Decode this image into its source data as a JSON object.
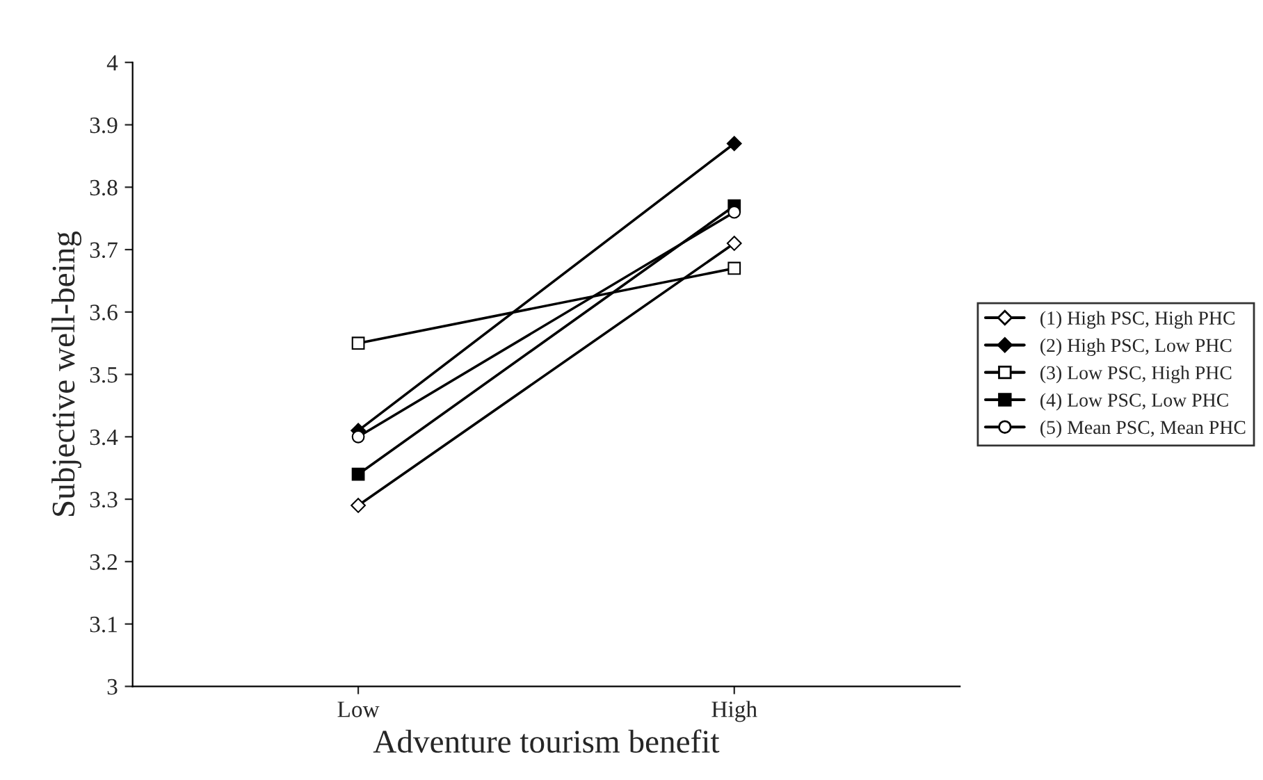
{
  "chart_data": {
    "type": "line",
    "xlabel": "Adventure tourism benefit",
    "ylabel": "Subjective well-being",
    "categories": [
      "Low",
      "High"
    ],
    "series": [
      {
        "name": "(1) High PSC, High PHC",
        "color": "#000000",
        "values": [
          3.29,
          3.71
        ],
        "marker": "diamond"
      },
      {
        "name": "(2) High PSC, Low PHC",
        "color": "#000000",
        "values": [
          3.41,
          3.87
        ],
        "marker": "diamond"
      },
      {
        "name": "(3) Low PSC, High PHC",
        "color": "#000000",
        "values": [
          3.55,
          3.67
        ],
        "marker": "square"
      },
      {
        "name": "(4) Low PSC, Low PHC",
        "color": "#000000",
        "values": [
          3.34,
          3.77
        ],
        "marker": "square"
      },
      {
        "name": "(5) Mean PSC, Mean PHC",
        "color": "#000000",
        "values": [
          3.4,
          3.76
        ],
        "marker": "circle"
      }
    ],
    "ylim": [
      3,
      4
    ],
    "yticks": [
      3,
      3.1,
      3.2,
      3.3,
      3.4,
      3.5,
      3.6,
      3.7,
      3.8,
      3.9,
      4
    ],
    "grid": false,
    "legend": "right"
  }
}
